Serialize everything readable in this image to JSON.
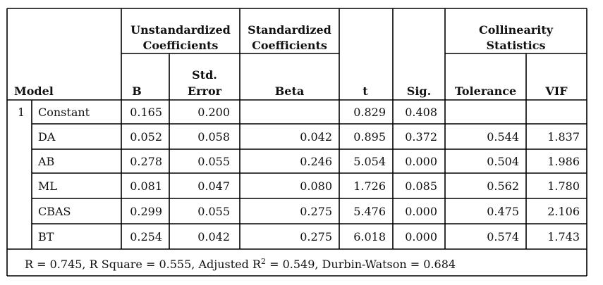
{
  "table": {
    "headers": {
      "model": "Model",
      "unstd_group": [
        "Unstandardized",
        "Coefficients"
      ],
      "std_group": [
        "Standardized",
        "Coefficients"
      ],
      "collin_group": [
        "Collinearity",
        "Statistics"
      ],
      "b": "B",
      "std_error": [
        "Std.",
        "Error"
      ],
      "beta": "Beta",
      "t": "t",
      "sig": "Sig.",
      "tolerance": "Tolerance",
      "vif": "VIF"
    },
    "model_number": "1",
    "rows": [
      {
        "name": "Constant",
        "b": "0.165",
        "se": "0.200",
        "beta": "",
        "t": "0.829",
        "sig": "0.408",
        "tol": "",
        "vif": ""
      },
      {
        "name": "DA",
        "b": "0.052",
        "se": "0.058",
        "beta": "0.042",
        "t": "0.895",
        "sig": "0.372",
        "tol": "0.544",
        "vif": "1.837"
      },
      {
        "name": "AB",
        "b": "0.278",
        "se": "0.055",
        "beta": "0.246",
        "t": "5.054",
        "sig": "0.000",
        "tol": "0.504",
        "vif": "1.986"
      },
      {
        "name": "ML",
        "b": "0.081",
        "se": "0.047",
        "beta": "0.080",
        "t": "1.726",
        "sig": "0.085",
        "tol": "0.562",
        "vif": "1.780"
      },
      {
        "name": "CBAS",
        "b": "0.299",
        "se": "0.055",
        "beta": "0.275",
        "t": "5.476",
        "sig": "0.000",
        "tol": "0.475",
        "vif": "2.106"
      },
      {
        "name": "BT",
        "b": "0.254",
        "se": "0.042",
        "beta": "0.275",
        "t": "6.018",
        "sig": "0.000",
        "tol": "0.574",
        "vif": "1.743"
      }
    ],
    "footer": {
      "before": "R = 0.745, R Square = 0.555, Adjusted R",
      "sup": "2",
      "after": " = 0.549, Durbin-Watson = 0.684"
    }
  }
}
